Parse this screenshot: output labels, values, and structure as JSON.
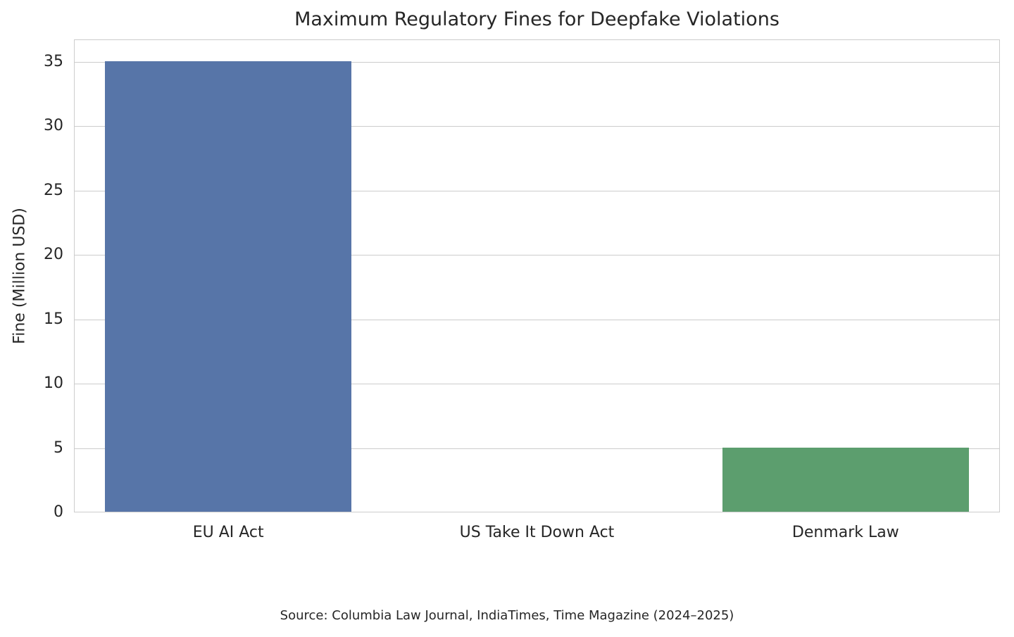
{
  "chart_data": {
    "type": "bar",
    "title": "Maximum Regulatory Fines for Deepfake Violations",
    "xlabel": "",
    "ylabel": "Fine (Million USD)",
    "categories": [
      "EU AI Act",
      "US Take It Down Act",
      "Denmark Law"
    ],
    "values": [
      35,
      0,
      5
    ],
    "bar_colors": [
      "#5775A8",
      null,
      "#5C9E6E"
    ],
    "yticks": [
      0,
      5,
      10,
      15,
      20,
      25,
      30,
      35
    ],
    "ylim": [
      0,
      36.75
    ],
    "grid": true,
    "legend": "none",
    "source_note": "Source: Columbia Law Journal, IndiaTimes, Time Magazine (2024–2025)"
  },
  "colors": {
    "background": "#ffffff",
    "grid": "#cccccc",
    "spine": "#cccccc",
    "text": "#262626"
  }
}
